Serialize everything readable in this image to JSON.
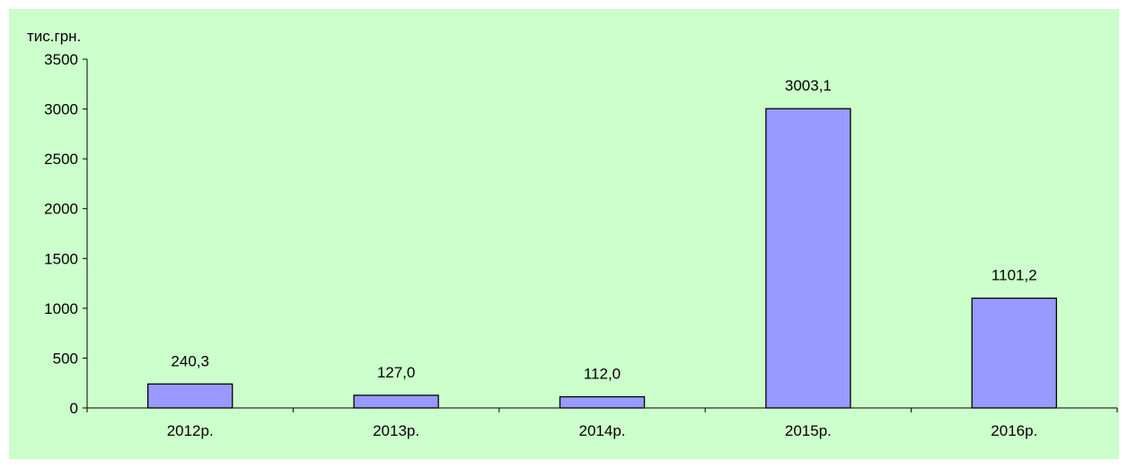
{
  "colors": {
    "plot_background": "#ccffcc",
    "bar_fill": "#9999ff",
    "bar_stroke": "#000000",
    "axis": "#000000"
  },
  "chart_data": {
    "type": "bar",
    "title": "",
    "xlabel": "",
    "ylabel": "тис.грн.",
    "categories": [
      "2012р.",
      "2013р.",
      "2014р.",
      "2015р.",
      "2016р."
    ],
    "values": [
      240.3,
      127.0,
      112.0,
      3003.1,
      1101.2
    ],
    "value_labels": [
      "240,3",
      "127,0",
      "112,0",
      "3003,1",
      "1101,2"
    ],
    "ylim": [
      0,
      3500
    ],
    "yticks": [
      0,
      500,
      1000,
      1500,
      2000,
      2500,
      3000,
      3500
    ],
    "grid": false,
    "legend": "none"
  }
}
